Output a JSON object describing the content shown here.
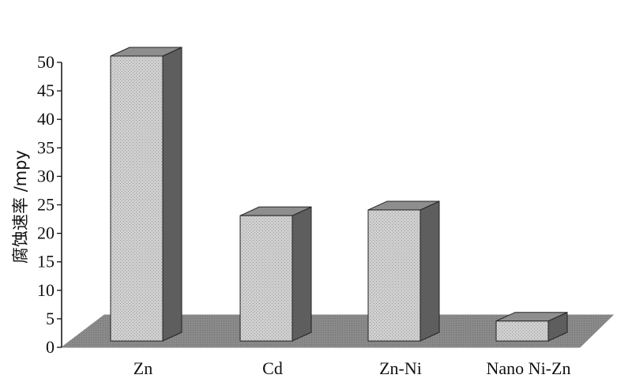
{
  "chart_data": {
    "type": "bar",
    "categories": [
      "Zn",
      "Cd",
      "Zn-Ni",
      "Nano Ni-Zn"
    ],
    "values": [
      50,
      22,
      23,
      3.5
    ],
    "ylabel": "腐蚀速率 /mpy",
    "ylim": [
      0,
      50
    ],
    "yticks": [
      0,
      5,
      10,
      15,
      20,
      25,
      30,
      35,
      40,
      45,
      50
    ],
    "style": "3d",
    "grid": false,
    "colors": {
      "bar_front": "#c9c9c9",
      "bar_top": "#8e8e8e",
      "bar_side": "#5e5e5e",
      "floor": "#8a8a8a",
      "axis": "#111111"
    }
  }
}
